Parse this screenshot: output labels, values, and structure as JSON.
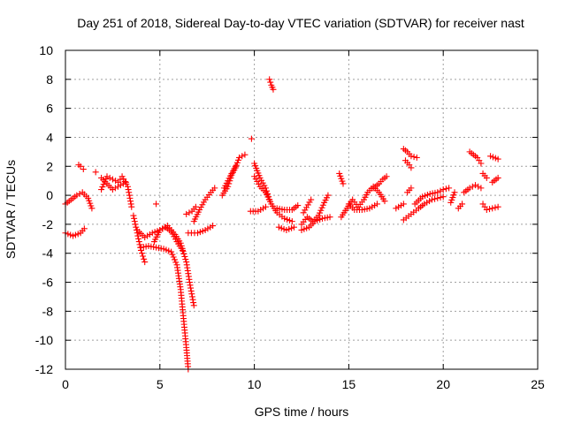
{
  "chart_data": {
    "type": "scatter",
    "title": "Day 251 of 2018, Sidereal Day-to-day VTEC variation (SDTVAR) for receiver nast",
    "xlabel": "GPS time / hours",
    "ylabel": "SDTVAR / TECUs",
    "xlim": [
      0,
      25
    ],
    "ylim": [
      -12,
      10
    ],
    "xticks": [
      0,
      5,
      10,
      15,
      20,
      25
    ],
    "yticks": [
      -12,
      -10,
      -8,
      -6,
      -4,
      -2,
      0,
      2,
      4,
      6,
      8,
      10
    ],
    "grid": true,
    "marker": "+",
    "colors": {
      "points": "#ff0000",
      "grid": "#a0a0a0",
      "frame": "#000000"
    },
    "series": [
      {
        "name": "SDTVAR",
        "segments": [
          [
            [
              0.0,
              -2.6
            ],
            [
              0.4,
              -2.8
            ],
            [
              0.8,
              -2.6
            ],
            [
              1.0,
              -2.3
            ]
          ],
          [
            [
              0.0,
              -0.6
            ],
            [
              0.3,
              -0.3
            ],
            [
              0.6,
              0.0
            ],
            [
              0.9,
              0.2
            ],
            [
              1.2,
              -0.2
            ],
            [
              1.4,
              -0.9
            ]
          ],
          [
            [
              0.7,
              2.1
            ],
            [
              0.8,
              2.0
            ],
            [
              0.95,
              1.8
            ]
          ],
          [
            [
              1.6,
              1.6
            ]
          ],
          [
            [
              1.9,
              0.4
            ],
            [
              2.2,
              1.3
            ],
            [
              2.5,
              1.1
            ],
            [
              2.8,
              0.9
            ],
            [
              3.0,
              1.3
            ],
            [
              3.3,
              0.6
            ],
            [
              3.5,
              -0.8
            ]
          ],
          [
            [
              1.9,
              1.2
            ],
            [
              2.5,
              0.4
            ],
            [
              3.2,
              0.9
            ]
          ],
          [
            [
              3.6,
              -1.4
            ],
            [
              3.8,
              -2.6
            ],
            [
              4.0,
              -3.8
            ],
            [
              4.2,
              -4.6
            ]
          ],
          [
            [
              3.8,
              -2.4
            ],
            [
              4.2,
              -2.9
            ],
            [
              4.6,
              -2.6
            ],
            [
              5.0,
              -2.4
            ],
            [
              5.4,
              -2.1
            ],
            [
              5.8,
              -2.7
            ],
            [
              6.1,
              -3.3
            ],
            [
              6.4,
              -4.6
            ],
            [
              6.6,
              -6.2
            ],
            [
              6.8,
              -7.6
            ]
          ],
          [
            [
              4.0,
              -3.6
            ],
            [
              4.4,
              -3.5
            ],
            [
              4.8,
              -3.6
            ],
            [
              5.2,
              -3.7
            ],
            [
              5.6,
              -3.9
            ],
            [
              5.9,
              -4.8
            ],
            [
              6.1,
              -6.5
            ],
            [
              6.25,
              -8.5
            ],
            [
              6.4,
              -10.5
            ],
            [
              6.5,
              -12.0
            ]
          ],
          [
            [
              4.7,
              -3.2
            ],
            [
              5.0,
              -2.4
            ],
            [
              5.3,
              -2.2
            ],
            [
              5.6,
              -2.5
            ],
            [
              5.9,
              -3.2
            ],
            [
              6.2,
              -3.8
            ]
          ],
          [
            [
              4.8,
              -0.6
            ]
          ],
          [
            [
              6.4,
              -1.3
            ],
            [
              6.7,
              -1.1
            ],
            [
              6.9,
              -0.8
            ]
          ],
          [
            [
              6.5,
              -2.6
            ],
            [
              7.0,
              -2.6
            ],
            [
              7.4,
              -2.4
            ],
            [
              7.8,
              -2.1
            ]
          ],
          [
            [
              6.8,
              -1.8
            ],
            [
              7.1,
              -1.0
            ],
            [
              7.4,
              -0.3
            ],
            [
              7.7,
              0.2
            ],
            [
              7.9,
              0.5
            ]
          ],
          [
            [
              8.3,
              0.0
            ],
            [
              8.6,
              0.6
            ],
            [
              8.8,
              1.4
            ],
            [
              9.0,
              1.9
            ],
            [
              9.2,
              2.6
            ],
            [
              9.5,
              2.8
            ]
          ],
          [
            [
              8.4,
              0.5
            ],
            [
              8.6,
              1.0
            ],
            [
              9.0,
              2.0
            ]
          ],
          [
            [
              9.85,
              3.9
            ]
          ],
          [
            [
              10.8,
              8.0
            ],
            [
              10.9,
              7.6
            ],
            [
              11.0,
              7.3
            ]
          ],
          [
            [
              10.0,
              1.3
            ],
            [
              10.3,
              0.6
            ],
            [
              10.6,
              0.2
            ],
            [
              10.9,
              -0.6
            ],
            [
              11.2,
              -1.2
            ],
            [
              11.6,
              -1.6
            ],
            [
              12.0,
              -1.8
            ]
          ],
          [
            [
              10.0,
              2.2
            ],
            [
              10.3,
              1.2
            ],
            [
              10.6,
              0.5
            ],
            [
              10.8,
              -0.3
            ]
          ],
          [
            [
              9.8,
              -1.1
            ],
            [
              10.2,
              -1.1
            ],
            [
              10.6,
              -0.8
            ]
          ],
          [
            [
              11.3,
              -2.2
            ],
            [
              11.7,
              -2.4
            ],
            [
              12.1,
              -2.2
            ]
          ],
          [
            [
              11.2,
              -0.9
            ],
            [
              11.6,
              -1.0
            ],
            [
              12.0,
              -1.0
            ],
            [
              12.3,
              -0.7
            ]
          ],
          [
            [
              12.6,
              -1.2
            ],
            [
              13.0,
              -0.3
            ]
          ],
          [
            [
              12.5,
              -2.0
            ],
            [
              12.8,
              -1.5
            ],
            [
              13.1,
              -1.8
            ],
            [
              13.4,
              -1.4
            ],
            [
              13.7,
              -0.5
            ],
            [
              13.9,
              0.0
            ]
          ],
          [
            [
              12.5,
              -2.4
            ],
            [
              12.9,
              -2.2
            ],
            [
              13.2,
              -1.8
            ],
            [
              13.6,
              -1.6
            ],
            [
              14.0,
              -1.5
            ]
          ],
          [
            [
              14.5,
              1.5
            ],
            [
              14.7,
              0.8
            ]
          ],
          [
            [
              14.6,
              -1.5
            ],
            [
              14.9,
              -0.9
            ],
            [
              15.2,
              -0.3
            ],
            [
              15.5,
              -0.8
            ],
            [
              15.8,
              -0.3
            ],
            [
              16.0,
              0.2
            ],
            [
              16.3,
              0.6
            ],
            [
              16.6,
              0.2
            ],
            [
              16.9,
              -0.4
            ]
          ],
          [
            [
              15.0,
              -0.6
            ],
            [
              15.3,
              -1.0
            ],
            [
              15.7,
              -1.0
            ],
            [
              16.1,
              -0.9
            ],
            [
              16.5,
              -0.6
            ]
          ],
          [
            [
              16.3,
              0.5
            ],
            [
              16.6,
              0.8
            ],
            [
              16.8,
              1.1
            ],
            [
              17.0,
              1.3
            ]
          ],
          [
            [
              17.5,
              -0.9
            ],
            [
              17.9,
              -0.6
            ]
          ],
          [
            [
              17.9,
              3.2
            ],
            [
              18.1,
              3.0
            ],
            [
              18.3,
              2.7
            ],
            [
              18.6,
              2.6
            ]
          ],
          [
            [
              18.0,
              2.4
            ],
            [
              18.2,
              2.1
            ],
            [
              18.3,
              1.9
            ]
          ],
          [
            [
              18.1,
              0.2
            ],
            [
              18.3,
              0.5
            ]
          ],
          [
            [
              17.9,
              -1.7
            ],
            [
              18.3,
              -1.3
            ],
            [
              18.7,
              -0.9
            ],
            [
              19.0,
              -0.6
            ],
            [
              19.4,
              -0.3
            ],
            [
              19.7,
              -0.2
            ],
            [
              20.0,
              -0.1
            ]
          ],
          [
            [
              18.5,
              -0.6
            ],
            [
              18.9,
              -0.1
            ],
            [
              19.3,
              0.1
            ],
            [
              19.7,
              0.2
            ],
            [
              20.0,
              0.4
            ],
            [
              20.3,
              0.5
            ]
          ],
          [
            [
              20.4,
              -0.5
            ],
            [
              20.6,
              0.2
            ]
          ],
          [
            [
              20.8,
              -0.9
            ],
            [
              21.0,
              -0.6
            ]
          ],
          [
            [
              21.1,
              0.2
            ],
            [
              21.4,
              0.5
            ],
            [
              21.7,
              0.7
            ],
            [
              22.0,
              0.5
            ]
          ],
          [
            [
              21.4,
              3.0
            ],
            [
              21.6,
              2.8
            ],
            [
              21.8,
              2.6
            ],
            [
              22.0,
              2.2
            ]
          ],
          [
            [
              22.1,
              1.5
            ],
            [
              22.3,
              1.2
            ]
          ],
          [
            [
              22.5,
              2.7
            ],
            [
              22.9,
              2.5
            ]
          ],
          [
            [
              22.6,
              0.9
            ],
            [
              22.9,
              1.2
            ]
          ],
          [
            [
              22.1,
              -0.6
            ],
            [
              22.3,
              -1.0
            ],
            [
              22.6,
              -0.9
            ],
            [
              22.9,
              -0.8
            ]
          ]
        ]
      }
    ]
  }
}
